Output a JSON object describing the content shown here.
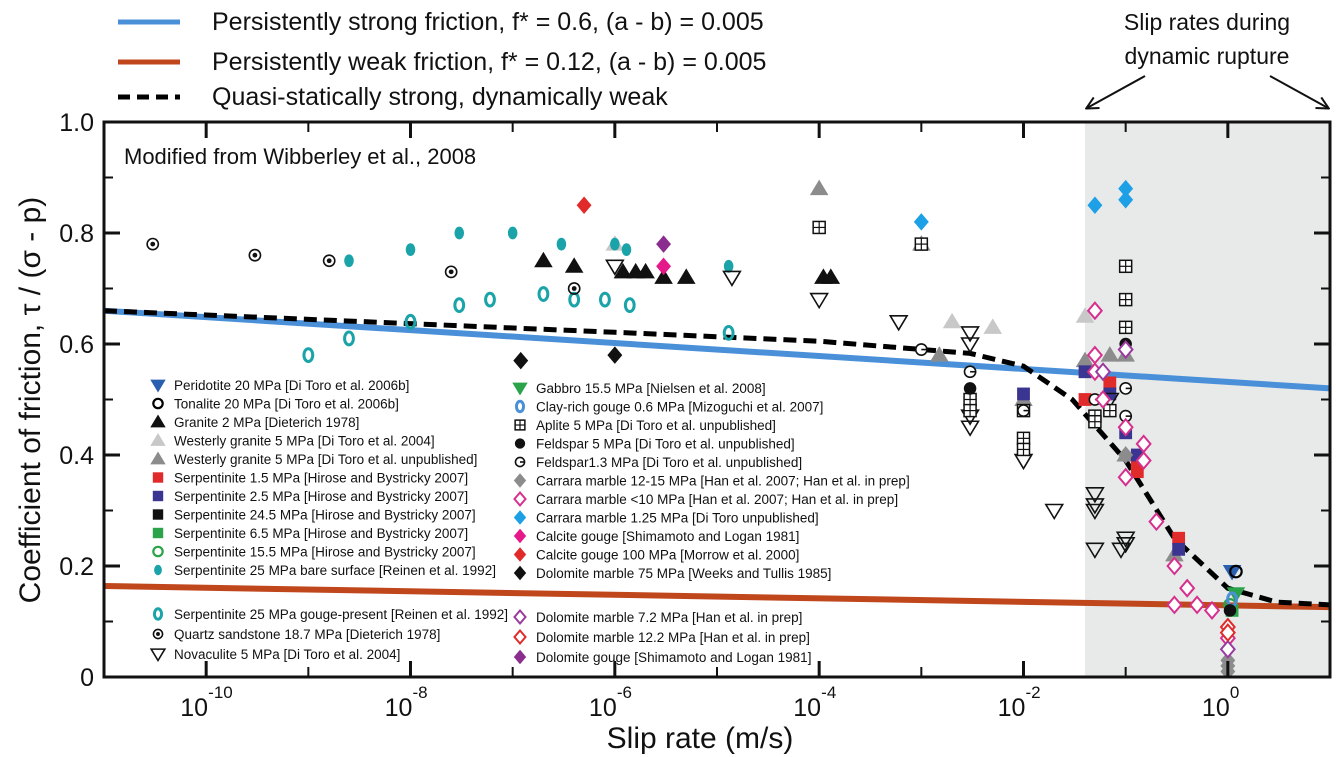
{
  "chart_data": {
    "type": "scatter",
    "title": "",
    "xlabel": "Slip rate (m/s)",
    "ylabel": "Coefficient of friction, τ / (σ - p)",
    "x_scale": "log",
    "xlim": [
      1e-11,
      10
    ],
    "ylim": [
      0,
      1.0
    ],
    "x_tick_labels": [
      {
        "value": 1e-10,
        "base": "10",
        "exponent": "-10"
      },
      {
        "value": 1e-08,
        "base": "10",
        "exponent": "-8"
      },
      {
        "value": 1e-06,
        "base": "10",
        "exponent": "-6"
      },
      {
        "value": 0.0001,
        "base": "10",
        "exponent": "-4"
      },
      {
        "value": 0.01,
        "base": "10",
        "exponent": "-2"
      },
      {
        "value": 1,
        "base": "10",
        "exponent": "0"
      }
    ],
    "y_ticks": [
      {
        "value": 0,
        "label": "0"
      },
      {
        "value": 0.2,
        "label": "0.2"
      },
      {
        "value": 0.4,
        "label": "0.4"
      },
      {
        "value": 0.6,
        "label": "0.6"
      },
      {
        "value": 0.8,
        "label": "0.8"
      },
      {
        "value": 1.0,
        "label": "1.0"
      }
    ],
    "grid": false,
    "shaded_region": {
      "x_from": 0.04,
      "x_to": 10,
      "color": "#e8eaea"
    },
    "annotations": {
      "source_note": "Modified from Wibberley et al., 2008",
      "dynamic_line1": "Slip rates during",
      "dynamic_line2": "dynamic rupture"
    },
    "line_legend": [
      {
        "label": "Persistently strong friction, f* = 0.6,  (a - b) = 0.005",
        "color": "#4a90d9",
        "style": "solid"
      },
      {
        "label": "Persistently weak friction, f* = 0.12,  (a - b) = 0.005",
        "color": "#c0461c",
        "style": "solid"
      },
      {
        "label": "Quasi-statically strong, dynamically weak",
        "color": "#000000",
        "style": "dashed"
      }
    ],
    "lines": [
      {
        "name": "strong",
        "color": "#4a90d9",
        "style": "solid",
        "x": [
          1e-11,
          10
        ],
        "y": [
          0.66,
          0.52
        ]
      },
      {
        "name": "weak",
        "color": "#c0461c",
        "style": "solid",
        "x": [
          1e-11,
          10
        ],
        "y": [
          0.164,
          0.126
        ]
      },
      {
        "name": "qsdw",
        "color": "#000000",
        "style": "dashed",
        "x": [
          1e-11,
          1e-06,
          0.0001,
          0.003,
          0.01,
          0.03,
          0.1,
          0.3,
          1,
          3,
          10
        ],
        "y": [
          0.66,
          0.621,
          0.605,
          0.583,
          0.56,
          0.5,
          0.39,
          0.25,
          0.16,
          0.135,
          0.13
        ]
      }
    ],
    "series": [
      {
        "name": "Peridotite 20 MPa [Di Toro et al. 2006b]",
        "marker": "triDown",
        "color": "#2a5fb0",
        "fill": true,
        "points": [
          [
            1.1,
            0.19
          ]
        ]
      },
      {
        "name": "Tonalite 20 MPa [Di Toro et al. 2006b]",
        "marker": "circle",
        "color": "#000000",
        "fill": false,
        "points": [
          [
            1.2,
            0.19
          ]
        ]
      },
      {
        "name": "Granite 2 MPa [Dieterich 1978]",
        "marker": "triUp",
        "color": "#111111",
        "fill": true,
        "points": [
          [
            2e-07,
            0.75
          ],
          [
            4e-07,
            0.74
          ],
          [
            1.2e-06,
            0.73
          ],
          [
            1.6e-06,
            0.73
          ],
          [
            2e-06,
            0.73
          ],
          [
            3e-06,
            0.72
          ],
          [
            5e-06,
            0.72
          ],
          [
            0.00011,
            0.72
          ],
          [
            0.00013,
            0.72
          ]
        ]
      },
      {
        "name": "Westerly granite 5 MPa [Di Toro et al. 2004]",
        "marker": "triUp",
        "color": "#c8c8c8",
        "fill": true,
        "points": [
          [
            1e-06,
            0.78
          ],
          [
            0.002,
            0.64
          ],
          [
            0.005,
            0.63
          ],
          [
            0.04,
            0.65
          ]
        ]
      },
      {
        "name": "Westerly granite 5 MPa [Di Toro et al. unpublished]",
        "marker": "triUp",
        "color": "#8c8c8c",
        "fill": true,
        "points": [
          [
            0.0001,
            0.88
          ],
          [
            0.001,
            0.78
          ],
          [
            0.0015,
            0.58
          ],
          [
            0.01,
            0.5
          ],
          [
            0.04,
            0.57
          ],
          [
            0.07,
            0.58
          ],
          [
            0.1,
            0.58
          ],
          [
            0.1,
            0.4
          ],
          [
            0.3,
            0.22
          ]
        ]
      },
      {
        "name": "Serpentinite 1.5 MPa [Hirose and Bystricky 2007]",
        "marker": "square",
        "color": "#e12b2b",
        "fill": true,
        "points": [
          [
            0.04,
            0.5
          ],
          [
            0.07,
            0.53
          ],
          [
            0.13,
            0.39
          ],
          [
            0.13,
            0.37
          ],
          [
            0.33,
            0.25
          ]
        ]
      },
      {
        "name": "Serpentinite 2.5 MPa [Hirose and Bystricky 2007]",
        "marker": "square",
        "color": "#3a3591",
        "fill": true,
        "points": [
          [
            0.01,
            0.51
          ],
          [
            0.04,
            0.55
          ],
          [
            0.07,
            0.51
          ],
          [
            0.1,
            0.44
          ],
          [
            0.13,
            0.4
          ],
          [
            0.33,
            0.23
          ]
        ]
      },
      {
        "name": "Serpentinite 24.5 MPa [Hirose and Bystricky 2007]",
        "marker": "square",
        "color": "#111111",
        "fill": true,
        "points": []
      },
      {
        "name": "Serpentinite 6.5 MPa [Hirose and Bystricky 2007]",
        "marker": "square",
        "color": "#2aa34a",
        "fill": true,
        "points": [
          [
            1.1,
            0.12
          ]
        ]
      },
      {
        "name": "Serpentinite 15.5 MPa [Hirose and Bystricky 2007]",
        "marker": "circle",
        "color": "#2aa34a",
        "fill": false,
        "points": [
          [
            1.05,
            0.13
          ]
        ]
      },
      {
        "name": "Serpentinite 25 MPa bare surface [Reinen et al. 1992]",
        "marker": "ellipse",
        "color": "#1aa3a8",
        "fill": true,
        "points": [
          [
            2.5e-09,
            0.75
          ],
          [
            1e-08,
            0.77
          ],
          [
            3e-08,
            0.8
          ],
          [
            1e-07,
            0.8
          ],
          [
            3e-07,
            0.78
          ],
          [
            1e-06,
            0.78
          ],
          [
            1.3e-06,
            0.77
          ],
          [
            1.3e-05,
            0.74
          ]
        ]
      },
      {
        "name": "Serpentinite 25 MPa gouge-present [Reinen et al. 1992]",
        "marker": "ring",
        "color": "#1aa3a8",
        "fill": false,
        "points": [
          [
            1e-09,
            0.58
          ],
          [
            2.5e-09,
            0.61
          ],
          [
            1e-08,
            0.64
          ],
          [
            3e-08,
            0.67
          ],
          [
            6e-08,
            0.68
          ],
          [
            2e-07,
            0.69
          ],
          [
            4e-07,
            0.68
          ],
          [
            8e-07,
            0.68
          ],
          [
            1.4e-06,
            0.67
          ],
          [
            1.3e-05,
            0.62
          ]
        ]
      },
      {
        "name": "Quartz sandstone 18.7 MPa [Dieterich 1978]",
        "marker": "dotCircle",
        "color": "#111111",
        "fill": false,
        "points": [
          [
            3e-11,
            0.78
          ],
          [
            3e-10,
            0.76
          ],
          [
            1.6e-09,
            0.75
          ],
          [
            2.5e-08,
            0.73
          ],
          [
            4e-07,
            0.7
          ]
        ]
      },
      {
        "name": "Novaculite 5 MPa [Di Toro et al. 2004]",
        "marker": "triDownOpen",
        "color": "#111111",
        "fill": false,
        "points": [
          [
            1e-06,
            0.74
          ],
          [
            1.4e-05,
            0.72
          ],
          [
            0.0001,
            0.68
          ],
          [
            0.0006,
            0.64
          ],
          [
            0.003,
            0.62
          ],
          [
            0.003,
            0.6
          ],
          [
            0.003,
            0.45
          ],
          [
            0.003,
            0.47
          ],
          [
            0.01,
            0.39
          ],
          [
            0.02,
            0.3
          ],
          [
            0.05,
            0.33
          ],
          [
            0.05,
            0.31
          ],
          [
            0.05,
            0.3
          ],
          [
            0.05,
            0.23
          ],
          [
            0.07,
            0.5
          ],
          [
            0.1,
            0.25
          ],
          [
            0.1,
            0.24
          ],
          [
            0.09,
            0.23
          ]
        ]
      },
      {
        "name": "Gabbro 15.5 MPa [Nielsen et al. 2008]",
        "marker": "triDown",
        "color": "#2aa34a",
        "fill": true,
        "points": [
          [
            1.2,
            0.15
          ]
        ]
      },
      {
        "name": "Clay-rich gouge 0.6 MPa [Mizoguchi et al. 2007]",
        "marker": "ring",
        "color": "#4a90d9",
        "fill": false,
        "points": [
          [
            1.1,
            0.14
          ]
        ]
      },
      {
        "name": "Aplite 5 MPa [Di Toro et al. unpublished]",
        "marker": "boxPlus",
        "color": "#111111",
        "fill": false,
        "points": [
          [
            0.0001,
            0.81
          ],
          [
            0.001,
            0.78
          ],
          [
            0.003,
            0.5
          ],
          [
            0.003,
            0.48
          ],
          [
            0.01,
            0.48
          ],
          [
            0.01,
            0.43
          ],
          [
            0.01,
            0.41
          ],
          [
            0.05,
            0.47
          ],
          [
            0.05,
            0.46
          ],
          [
            0.07,
            0.48
          ],
          [
            0.1,
            0.74
          ],
          [
            0.1,
            0.68
          ],
          [
            0.1,
            0.63
          ]
        ]
      },
      {
        "name": "Feldspar 5 MPa [Di Toro et al. unpublished]",
        "marker": "circle",
        "color": "#111111",
        "fill": true,
        "points": [
          [
            0.003,
            0.52
          ],
          [
            0.1,
            0.6
          ],
          [
            1.05,
            0.12
          ]
        ]
      },
      {
        "name": "Feldspar1.3 MPa [Di Toro et al. unpublished]",
        "marker": "feldsparOpen",
        "color": "#111111",
        "fill": false,
        "points": [
          [
            0.001,
            0.59
          ],
          [
            0.003,
            0.55
          ],
          [
            0.01,
            0.48
          ],
          [
            0.05,
            0.5
          ],
          [
            0.1,
            0.52
          ],
          [
            0.1,
            0.47
          ]
        ]
      },
      {
        "name": "Carrara marble 12-15 MPa [Han et al. 2007; Han et al. in prep]",
        "marker": "diamond",
        "color": "#8c8c8c",
        "fill": true,
        "points": [
          [
            0.1,
            0.4
          ],
          [
            1.0,
            0.05
          ],
          [
            1.0,
            0.03
          ],
          [
            1.0,
            0.02
          ],
          [
            1.0,
            0.01
          ]
        ]
      },
      {
        "name": "Carrara marble <10 MPa [Han et al. 2007; Han et al. in prep]",
        "marker": "diamond",
        "color": "#d6308f",
        "fill": false,
        "points": [
          [
            0.05,
            0.66
          ],
          [
            0.05,
            0.58
          ],
          [
            0.05,
            0.55
          ],
          [
            0.06,
            0.5
          ],
          [
            0.1,
            0.45
          ],
          [
            0.1,
            0.36
          ],
          [
            0.15,
            0.42
          ],
          [
            0.15,
            0.39
          ],
          [
            0.2,
            0.28
          ],
          [
            0.3,
            0.2
          ],
          [
            0.4,
            0.16
          ],
          [
            0.3,
            0.13
          ],
          [
            0.5,
            0.13
          ],
          [
            0.7,
            0.12
          ],
          [
            1.0,
            0.07
          ]
        ]
      },
      {
        "name": "Carrara marble 1.25 MPa [Di Toro unpublished]",
        "marker": "diamond",
        "color": "#1ea0e6",
        "fill": true,
        "points": [
          [
            0.001,
            0.82
          ],
          [
            0.05,
            0.85
          ],
          [
            0.1,
            0.88
          ],
          [
            0.1,
            0.86
          ]
        ]
      },
      {
        "name": "Calcite gouge [Shimamoto and Logan 1981]",
        "marker": "diamond",
        "color": "#e6198a",
        "fill": true,
        "points": [
          [
            3e-06,
            0.74
          ]
        ]
      },
      {
        "name": "Calcite gouge 100 MPa [Morrow et al. 2000]",
        "marker": "diamond",
        "color": "#e12b2b",
        "fill": true,
        "points": [
          [
            5e-07,
            0.85
          ]
        ]
      },
      {
        "name": "Dolomite marble 75 MPa [Weeks and Tullis 1985]",
        "marker": "diamond",
        "color": "#111111",
        "fill": true,
        "points": [
          [
            1.2e-07,
            0.57
          ],
          [
            1e-06,
            0.58
          ]
        ]
      },
      {
        "name": "Dolomite marble 7.2 MPa [Han et al. in prep]",
        "marker": "diamond",
        "color": "#9a3a9e",
        "fill": false,
        "points": [
          [
            0.1,
            0.59
          ],
          [
            0.06,
            0.55
          ],
          [
            1.0,
            0.05
          ]
        ]
      },
      {
        "name": "Dolomite marble 12.2 MPa [Han et al. in prep]",
        "marker": "diamond",
        "color": "#e12b2b",
        "fill": false,
        "points": [
          [
            1.0,
            0.09
          ],
          [
            1.0,
            0.08
          ]
        ]
      },
      {
        "name": "Dolomite gouge [Shimamoto and Logan 1981]",
        "marker": "diamond",
        "color": "#8b2d8f",
        "fill": true,
        "points": [
          [
            3e-06,
            0.78
          ]
        ]
      }
    ]
  }
}
